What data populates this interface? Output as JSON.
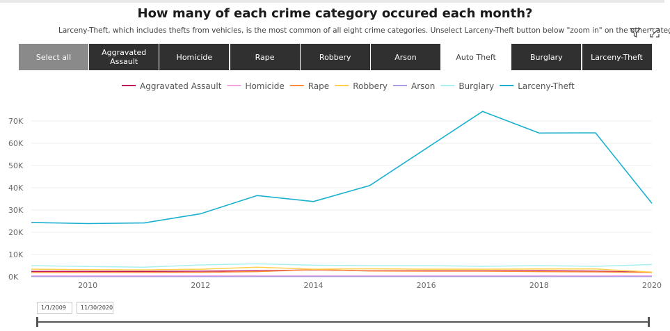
{
  "header": {
    "title": "How many of each crime category occured each month?",
    "subtitle": "Larceny-Theft, which includes thefts from vehicles, is the most common of all eight crime categories. Unselect Larceny-Theft button below \"zoom in\" on the other categories.",
    "icons": [
      "filter-icon",
      "focus-mode-icon"
    ]
  },
  "buttons": [
    {
      "label": "Select all",
      "state": "grey"
    },
    {
      "label": "Aggravated Assault",
      "state": "dark"
    },
    {
      "label": "Homicide",
      "state": "dark"
    },
    {
      "label": "Rape",
      "state": "dark"
    },
    {
      "label": "Robbery",
      "state": "dark"
    },
    {
      "label": "Arson",
      "state": "dark"
    },
    {
      "label": "Auto Theft",
      "state": "white"
    },
    {
      "label": "Burglary",
      "state": "dark"
    },
    {
      "label": "Larceny-Theft",
      "state": "dark"
    }
  ],
  "slicer": {
    "start": "1/1/2009",
    "end": "11/30/2020"
  },
  "chart_data": {
    "type": "line",
    "title": "",
    "xlabel": "",
    "ylabel": "",
    "x": [
      2009,
      2010,
      2011,
      2012,
      2013,
      2014,
      2015,
      2016,
      2017,
      2018,
      2019,
      2020
    ],
    "xticks": [
      2010,
      2012,
      2014,
      2016,
      2018,
      2020
    ],
    "xlim": [
      2009,
      2020
    ],
    "ylim": [
      0,
      75000
    ],
    "yticks": [
      0,
      10000,
      20000,
      30000,
      40000,
      50000,
      60000,
      70000
    ],
    "ytick_labels": [
      "0K",
      "10K",
      "20K",
      "30K",
      "40K",
      "50K",
      "60K",
      "70K"
    ],
    "grid": "horizontal",
    "legend": "top-center",
    "series": [
      {
        "name": "Aggravated Assault",
        "color": "#c2185b",
        "values": [
          2400,
          2400,
          2400,
          2500,
          2700,
          3100,
          2700,
          2700,
          2700,
          2700,
          2500,
          2000
        ]
      },
      {
        "name": "Homicide",
        "color": "#f5a3e0",
        "values": [
          400,
          400,
          400,
          400,
          400,
          400,
          400,
          400,
          400,
          400,
          400,
          400
        ]
      },
      {
        "name": "Rape",
        "color": "#ff8c3a",
        "values": [
          1900,
          1900,
          1900,
          2000,
          2300,
          3200,
          2600,
          2500,
          2500,
          2300,
          2200,
          1900
        ]
      },
      {
        "name": "Robbery",
        "color": "#ffd04d",
        "values": [
          3400,
          3200,
          3100,
          3400,
          4300,
          3400,
          3600,
          3400,
          3400,
          3500,
          3500,
          2100
        ]
      },
      {
        "name": "Arson",
        "color": "#b09ae8",
        "values": [
          150,
          120,
          120,
          120,
          150,
          150,
          150,
          150,
          150,
          150,
          120,
          150
        ]
      },
      {
        "name": "Burglary",
        "color": "#aaf0f0",
        "values": [
          5000,
          4600,
          4300,
          5300,
          5800,
          5200,
          5000,
          5000,
          4700,
          5000,
          4700,
          5500
        ]
      },
      {
        "name": "Larceny-Theft",
        "color": "#1ab0cf",
        "values": [
          24400,
          23900,
          24200,
          28300,
          36500,
          33800,
          41000,
          57700,
          74300,
          64600,
          64700,
          33000
        ]
      }
    ]
  }
}
